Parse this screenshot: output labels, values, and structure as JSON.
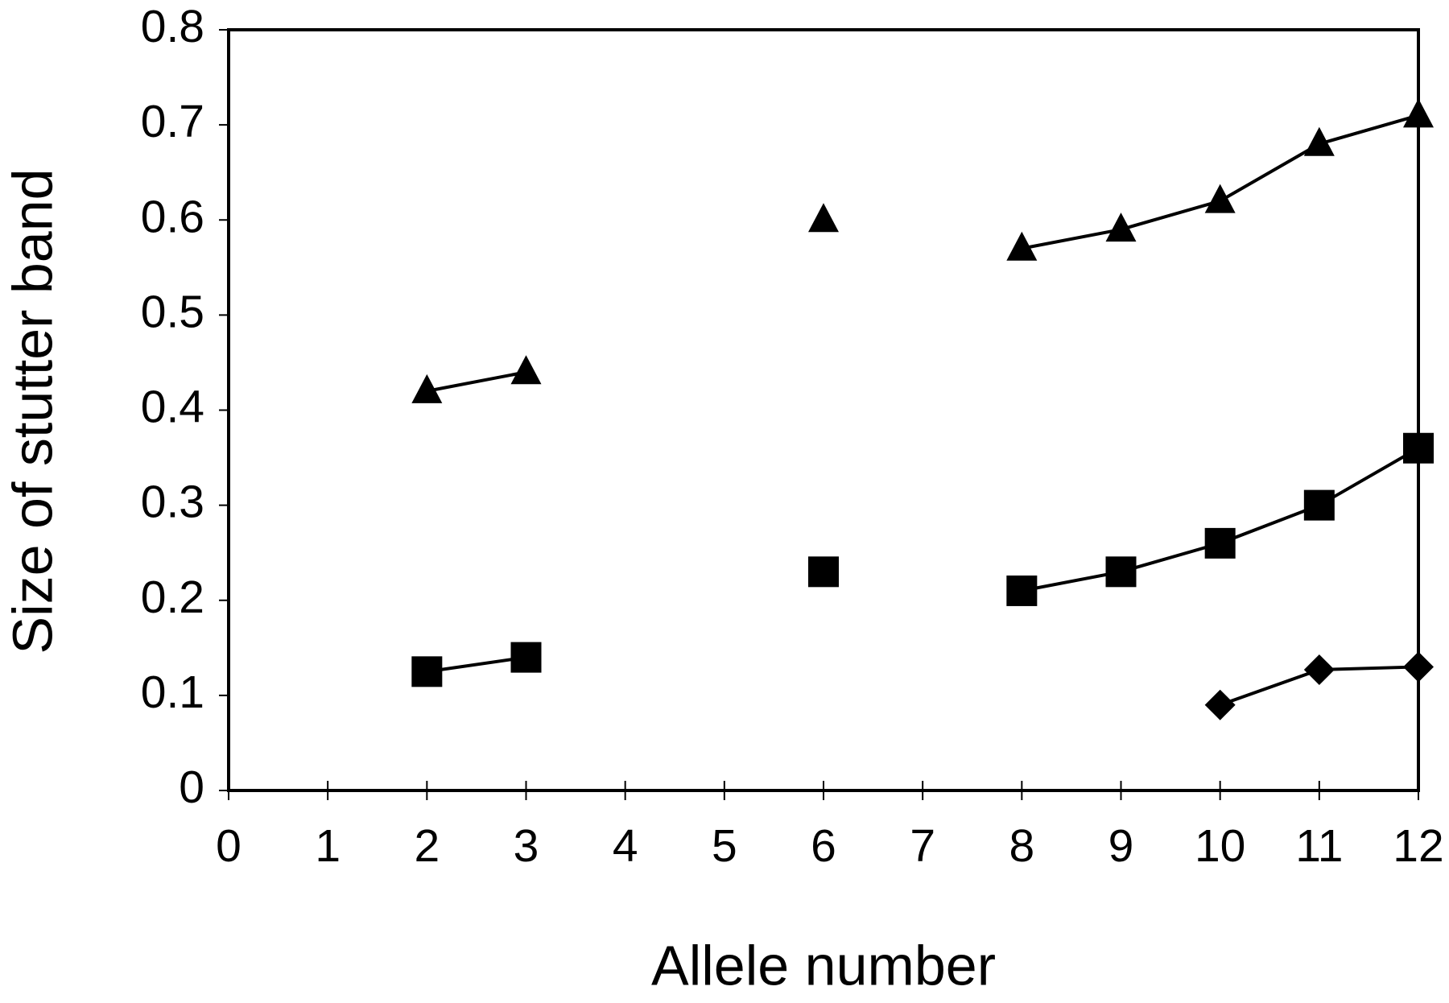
{
  "chart_data": {
    "type": "line",
    "x_label": "Allele number",
    "y_label": "Size of stutter band",
    "x": [
      2,
      3,
      4,
      5,
      6,
      7,
      8,
      9,
      10,
      11,
      12
    ],
    "series": [
      {
        "marker": "triangle",
        "color": "#000000",
        "values": [
          0.42,
          0.44,
          null,
          null,
          0.6,
          null,
          0.57,
          0.59,
          0.62,
          0.68,
          0.71
        ]
      },
      {
        "marker": "square",
        "color": "#000000",
        "values": [
          0.125,
          0.14,
          null,
          null,
          0.23,
          null,
          0.21,
          0.23,
          0.26,
          0.3,
          0.36
        ]
      },
      {
        "marker": "diamond",
        "color": "#000000",
        "values": [
          null,
          null,
          null,
          null,
          null,
          null,
          null,
          null,
          0.09,
          0.127,
          0.13
        ]
      }
    ],
    "xlim": [
      0,
      12
    ],
    "xticks": [
      0,
      1,
      2,
      3,
      4,
      5,
      6,
      7,
      8,
      9,
      10,
      11,
      12
    ],
    "ylim": [
      0,
      0.8
    ],
    "yticks": [
      0,
      0.1,
      0.2,
      0.3,
      0.4,
      0.5,
      0.6,
      0.7,
      0.8
    ],
    "grid": false
  }
}
